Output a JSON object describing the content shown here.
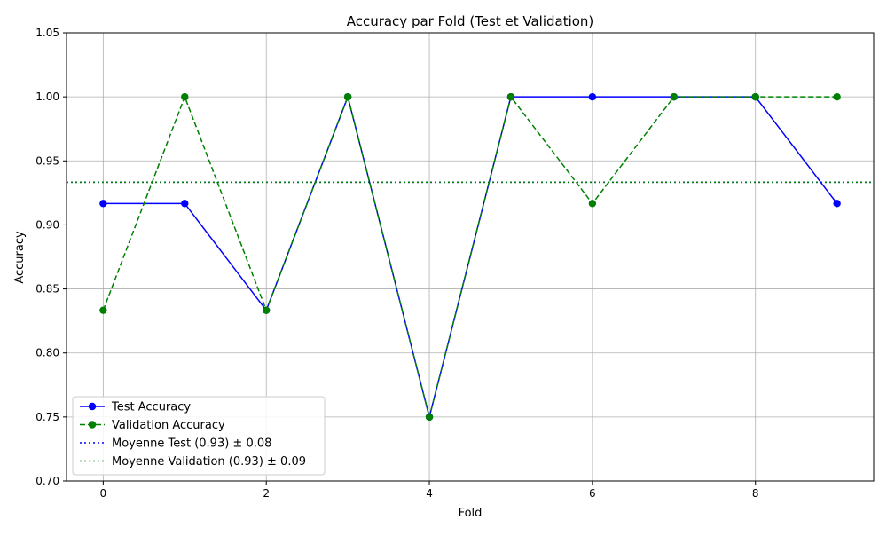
{
  "chart_data": {
    "type": "line",
    "title": "Accuracy par Fold (Test et Validation)",
    "xlabel": "Fold",
    "ylabel": "Accuracy",
    "xlim": [
      -0.45,
      9.45
    ],
    "ylim": [
      0.7,
      1.05
    ],
    "x_ticks": [
      0,
      2,
      4,
      6,
      8
    ],
    "x_tick_labels": [
      "0",
      "2",
      "4",
      "6",
      "8"
    ],
    "y_ticks": [
      0.7,
      0.75,
      0.8,
      0.85,
      0.9,
      0.95,
      1.0,
      1.05
    ],
    "y_tick_labels": [
      "0.70",
      "0.75",
      "0.80",
      "0.85",
      "0.90",
      "0.95",
      "1.00",
      "1.05"
    ],
    "grid": true,
    "legend_position": "lower-left",
    "x": [
      0,
      1,
      2,
      3,
      4,
      5,
      6,
      7,
      8,
      9
    ],
    "series": [
      {
        "name": "Test Accuracy",
        "values": [
          0.9167,
          0.9167,
          0.8333,
          1.0,
          0.75,
          1.0,
          1.0,
          1.0,
          1.0,
          0.9167
        ],
        "color": "#0000ff",
        "line_style": "solid",
        "marker": "circle"
      },
      {
        "name": "Validation Accuracy",
        "values": [
          0.8333,
          1.0,
          0.8333,
          1.0,
          0.75,
          1.0,
          0.9167,
          1.0,
          1.0,
          1.0
        ],
        "color": "#008000",
        "line_style": "dashed",
        "marker": "circle"
      }
    ],
    "reference_lines": [
      {
        "name": "Moyenne Test (0.93) ± 0.08",
        "y": 0.9333,
        "color": "#0000ff",
        "line_style": "dotted"
      },
      {
        "name": "Moyenne Validation (0.93) ± 0.09",
        "y": 0.9333,
        "color": "#008000",
        "line_style": "dotted"
      }
    ]
  }
}
